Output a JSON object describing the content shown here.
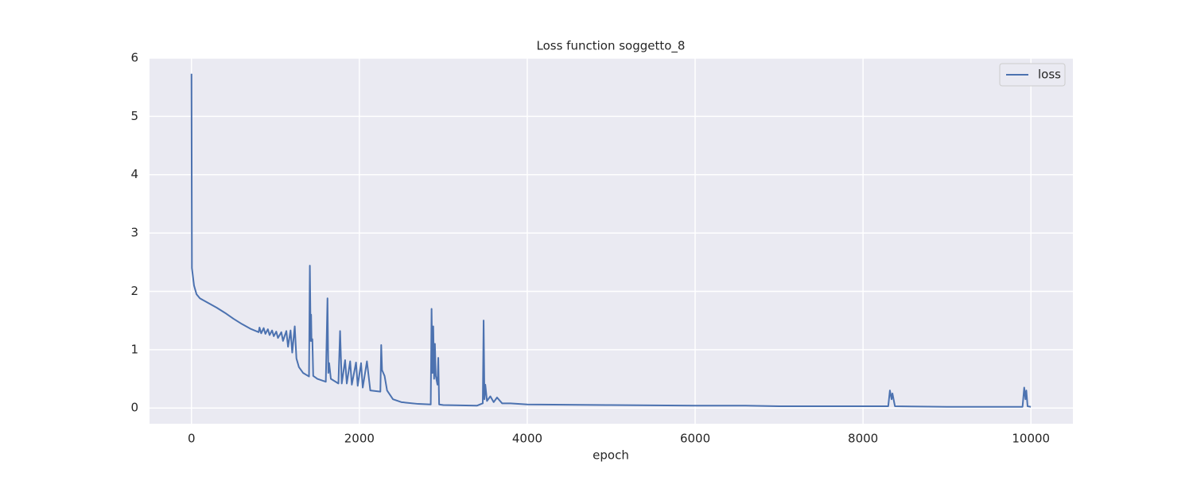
{
  "chart_data": {
    "type": "line",
    "title": "Loss function soggetto_8",
    "xlabel": "epoch",
    "x": [
      0,
      5,
      30,
      60,
      100,
      200,
      300,
      400,
      500,
      600,
      700,
      800,
      810,
      830,
      860,
      880,
      910,
      930,
      960,
      980,
      1010,
      1030,
      1070,
      1090,
      1130,
      1150,
      1180,
      1200,
      1230,
      1250,
      1280,
      1330,
      1400,
      1410,
      1420,
      1425,
      1430,
      1440,
      1450,
      1500,
      1600,
      1620,
      1630,
      1640,
      1660,
      1750,
      1770,
      1790,
      1830,
      1850,
      1890,
      1910,
      1960,
      1980,
      2020,
      2040,
      2090,
      2110,
      2130,
      2250,
      2260,
      2270,
      2300,
      2330,
      2400,
      2500,
      2700,
      2850,
      2860,
      2870,
      2880,
      2890,
      2900,
      2910,
      2930,
      2940,
      2950,
      3000,
      3400,
      3470,
      3480,
      3490,
      3500,
      3520,
      3560,
      3600,
      3640,
      3700,
      3800,
      4000,
      5000,
      6000,
      6600,
      7000,
      8000,
      8300,
      8320,
      8340,
      8350,
      8380,
      9000,
      9900,
      9920,
      9935,
      9945,
      9960,
      9999
    ],
    "series": [
      {
        "name": "loss",
        "color": "#4c72b0",
        "values": [
          5.73,
          2.4,
          2.1,
          1.95,
          1.88,
          1.8,
          1.72,
          1.63,
          1.53,
          1.44,
          1.36,
          1.3,
          1.38,
          1.28,
          1.37,
          1.27,
          1.35,
          1.25,
          1.33,
          1.23,
          1.31,
          1.2,
          1.3,
          1.15,
          1.32,
          1.05,
          1.33,
          0.95,
          1.4,
          0.85,
          0.7,
          0.6,
          0.54,
          2.44,
          1.15,
          1.6,
          1.15,
          1.18,
          0.55,
          0.5,
          0.45,
          1.88,
          0.6,
          0.77,
          0.5,
          0.42,
          1.32,
          0.42,
          0.82,
          0.42,
          0.8,
          0.4,
          0.78,
          0.38,
          0.77,
          0.35,
          0.8,
          0.55,
          0.3,
          0.28,
          1.08,
          0.65,
          0.55,
          0.3,
          0.15,
          0.1,
          0.07,
          0.06,
          1.7,
          0.6,
          1.4,
          0.5,
          1.1,
          0.55,
          0.4,
          0.86,
          0.06,
          0.05,
          0.04,
          0.08,
          1.5,
          0.15,
          0.4,
          0.12,
          0.2,
          0.1,
          0.18,
          0.08,
          0.08,
          0.06,
          0.05,
          0.04,
          0.04,
          0.03,
          0.03,
          0.03,
          0.3,
          0.15,
          0.25,
          0.03,
          0.02,
          0.02,
          0.35,
          0.15,
          0.3,
          0.03,
          0.02
        ]
      }
    ],
    "xlim": [
      -500,
      10500
    ],
    "xticks": [
      0,
      2000,
      4000,
      6000,
      8000,
      10000
    ],
    "ylim": [
      -0.27,
      6.0
    ],
    "yticks": [
      0,
      1,
      2,
      3,
      4,
      5,
      6
    ],
    "grid": true,
    "legend": "upper right"
  }
}
